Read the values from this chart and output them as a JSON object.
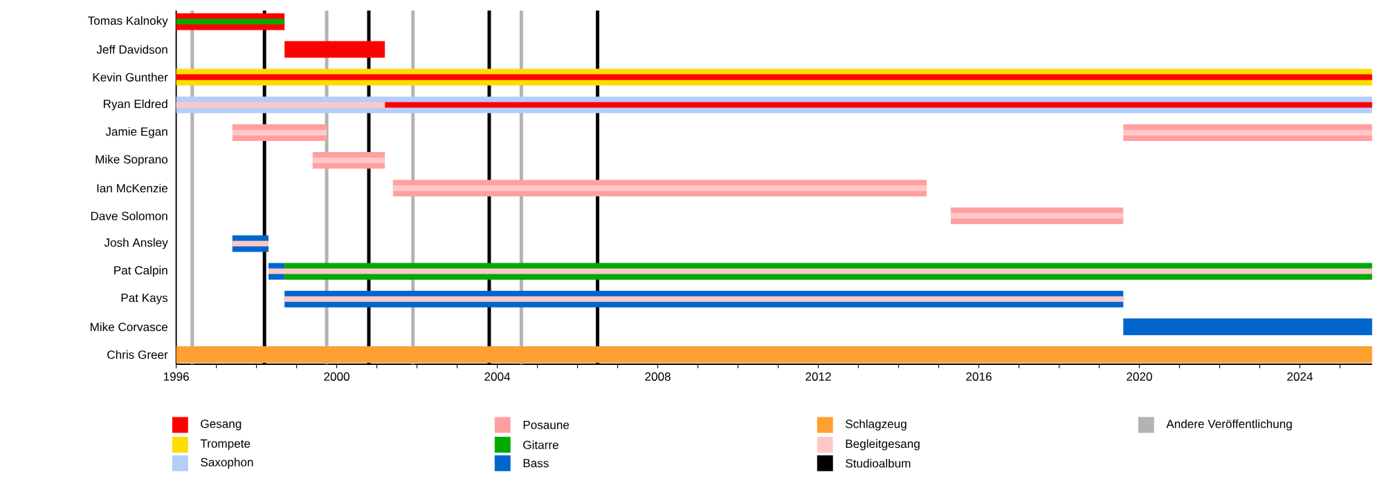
{
  "chart_data": {
    "type": "bar",
    "orientation": "horizontal",
    "categories": [
      "Tomas Kalnoky",
      "Jeff Davidson",
      "Kevin Gunther",
      "Ryan Eldred",
      "Jamie Egan",
      "Mike Soprano",
      "Ian McKenzie",
      "Dave Solomon",
      "Josh Ansley",
      "Pat Calpin",
      "Pat Kays",
      "Mike Corvasce",
      "Chris Greer"
    ],
    "series": [
      {
        "name": "Gesang",
        "color": "#ff0000",
        "base": [
          1996,
          1998.7,
          null,
          null,
          null,
          null,
          null,
          null,
          null,
          null,
          null,
          null,
          null
        ],
        "values": [
          2.7,
          2.5,
          null,
          null,
          null,
          null,
          null,
          null,
          null,
          null,
          null,
          null,
          null
        ]
      },
      {
        "name": "Trompete",
        "color": "#ffdd00",
        "base": [
          null,
          null,
          1996,
          null,
          null,
          null,
          null,
          null,
          null,
          null,
          null,
          null,
          null
        ],
        "values": [
          null,
          null,
          29.8,
          null,
          null,
          null,
          null,
          null,
          null,
          null,
          null,
          null,
          null
        ]
      },
      {
        "name": "Saxophon",
        "color": "#b4cdfa",
        "base": [
          null,
          null,
          null,
          1996,
          null,
          null,
          null,
          null,
          null,
          null,
          null,
          null,
          null
        ],
        "values": [
          null,
          null,
          null,
          29.8,
          null,
          null,
          null,
          null,
          null,
          null,
          null,
          null,
          null
        ]
      },
      {
        "name": "Posaune",
        "color": "#ffa0a0",
        "base": [
          null,
          null,
          null,
          null,
          1997.4,
          1999.4,
          2001.4,
          2015.3,
          null,
          null,
          null,
          null,
          null
        ],
        "values": [
          null,
          null,
          null,
          null,
          2.35,
          1.8,
          13.3,
          4.3,
          null,
          null,
          null,
          null,
          null
        ]
      },
      {
        "color": "#ffa0a0",
        "base": [
          null,
          null,
          null,
          null,
          2019.6,
          null,
          null,
          null,
          null,
          null,
          null,
          null,
          null
        ],
        "values": [
          null,
          null,
          null,
          null,
          6.2,
          null,
          null,
          null,
          null,
          null,
          null,
          null,
          null
        ]
      },
      {
        "name": "Gitarre",
        "color": "#00aa00",
        "base": [
          1996,
          null,
          null,
          null,
          null,
          null,
          null,
          null,
          null,
          1998.7,
          null,
          null,
          null
        ],
        "values": [
          2.7,
          null,
          null,
          null,
          null,
          null,
          null,
          null,
          null,
          27.1,
          null,
          null,
          null
        ]
      },
      {
        "name": "Bass",
        "color": "#0066cc",
        "base": [
          null,
          null,
          null,
          null,
          null,
          null,
          null,
          null,
          1997.4,
          1998.3,
          1998.7,
          2019.6,
          null
        ],
        "values": [
          null,
          null,
          null,
          null,
          null,
          null,
          null,
          null,
          0.9,
          0.4,
          20.9,
          6.2,
          null
        ]
      },
      {
        "name": "Schlagzeug",
        "color": "#ffa030",
        "base": [
          null,
          null,
          null,
          null,
          null,
          null,
          null,
          null,
          null,
          null,
          null,
          null,
          1996
        ],
        "values": [
          null,
          null,
          null,
          null,
          null,
          null,
          null,
          null,
          null,
          null,
          null,
          null,
          29.8
        ]
      },
      {
        "color": "#ff0000",
        "base": [
          null,
          null,
          1996,
          2001.2,
          null,
          null,
          null,
          null,
          null,
          null,
          null,
          null,
          null
        ],
        "values": [
          null,
          null,
          29.8,
          24.6,
          null,
          null,
          null,
          null,
          null,
          null,
          null,
          null,
          null
        ]
      },
      {
        "name": "Begleitgesang",
        "color": "#ffc8c8",
        "base": [
          null,
          null,
          null,
          1996,
          1997.4,
          1999.4,
          2001.4,
          2015.3,
          1997.4,
          1998.3,
          1998.7,
          null,
          null
        ],
        "values": [
          null,
          null,
          null,
          5.2,
          2.35,
          1.8,
          13.3,
          4.3,
          0.9,
          27.5,
          20.9,
          null,
          null
        ]
      },
      {
        "color": "#ffc8c8",
        "base": [
          null,
          null,
          null,
          null,
          2019.6,
          null,
          null,
          null,
          null,
          null,
          null,
          null,
          null
        ],
        "values": [
          null,
          null,
          null,
          null,
          6.2,
          null,
          null,
          null,
          null,
          null,
          null,
          null,
          null
        ]
      }
    ],
    "ref_lines": [
      {
        "axis": "x",
        "value": 1998.2,
        "label": "Studioalbum",
        "color": "#000000"
      },
      {
        "axis": "x",
        "value": 2000.8,
        "label": null,
        "color": "#000000"
      },
      {
        "axis": "x",
        "value": 2003.8,
        "label": null,
        "color": "#000000"
      },
      {
        "axis": "x",
        "value": 2006.5,
        "label": null,
        "color": "#000000"
      },
      {
        "axis": "x",
        "value": 1996.4,
        "label": "Andere Veröffentlichung",
        "color": "#b3b3b3"
      },
      {
        "axis": "x",
        "value": 1999.75,
        "label": null,
        "color": "#b3b3b3"
      },
      {
        "axis": "x",
        "value": 2001.9,
        "label": null,
        "color": "#b3b3b3"
      },
      {
        "axis": "x",
        "value": 2004.6,
        "label": null,
        "color": "#b3b3b3"
      }
    ],
    "xlim": [
      1996,
      2025.8
    ],
    "xticks": [
      1996,
      {
        "value": 1997,
        "label": null
      },
      {
        "value": 1998,
        "label": null
      },
      {
        "value": 1999,
        "label": null
      },
      2000,
      {
        "value": 2001,
        "label": null
      },
      {
        "value": 2002,
        "label": null
      },
      {
        "value": 2003,
        "label": null
      },
      2004,
      {
        "value": 2005,
        "label": null
      },
      {
        "value": 2006,
        "label": null
      },
      {
        "value": 2007,
        "label": null
      },
      2008,
      {
        "value": 2009,
        "label": null
      },
      {
        "value": 2010,
        "label": null
      },
      {
        "value": 2011,
        "label": null
      },
      2012,
      {
        "value": 2013,
        "label": null
      },
      {
        "value": 2014,
        "label": null
      },
      {
        "value": 2015,
        "label": null
      },
      2016,
      {
        "value": 2017,
        "label": null
      },
      {
        "value": 2018,
        "label": null
      },
      {
        "value": 2019,
        "label": null
      },
      2020,
      {
        "value": 2021,
        "label": null
      },
      {
        "value": 2022,
        "label": null
      },
      {
        "value": 2023,
        "label": null
      },
      2024,
      {
        "value": 2025,
        "label": null
      }
    ],
    "legend": "bottom"
  }
}
